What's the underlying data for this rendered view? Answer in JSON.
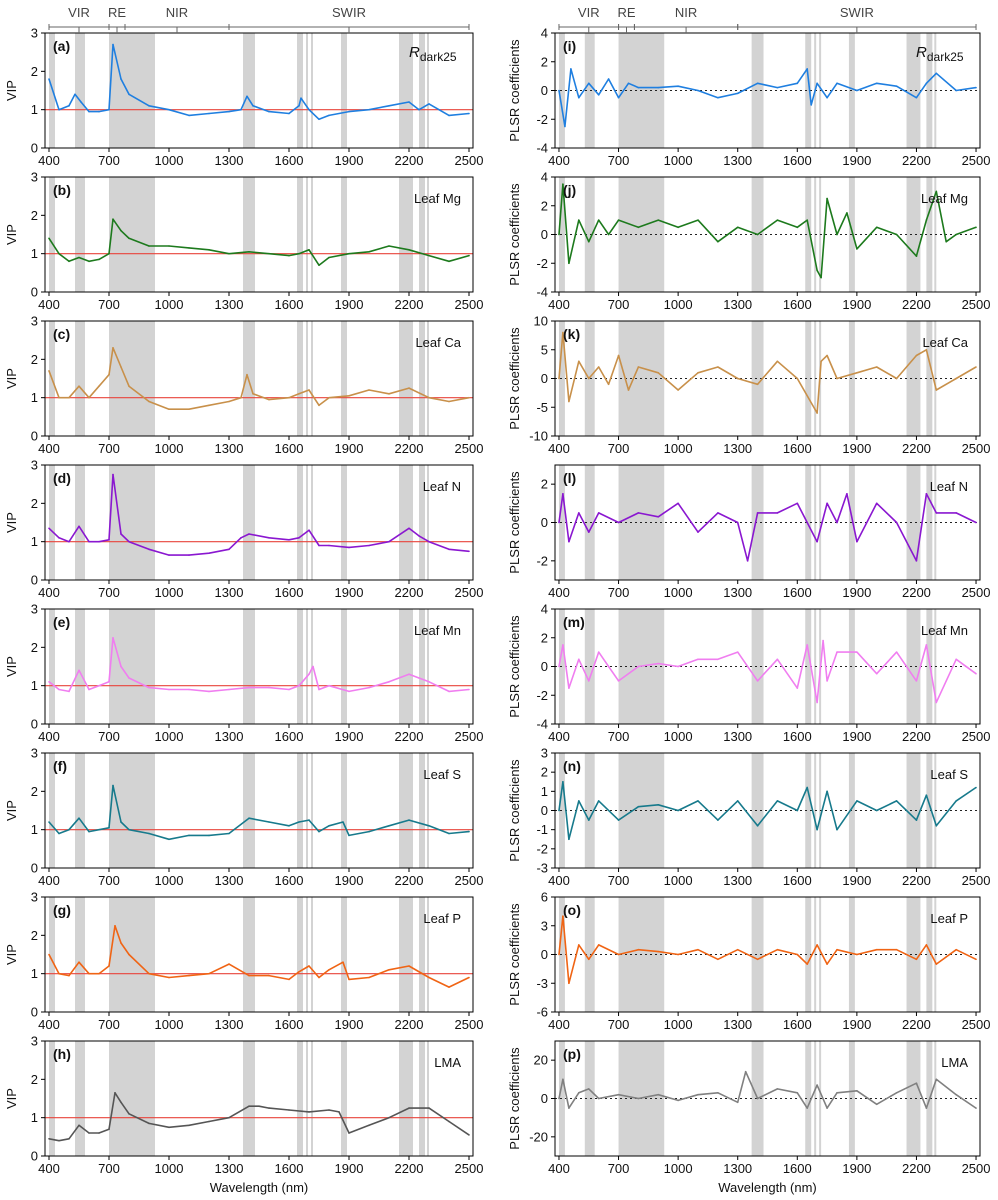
{
  "figure": {
    "x_axis_title": "Wavelength (nm)",
    "x_ticks": [
      400,
      700,
      1000,
      1300,
      1600,
      1900,
      2200,
      2500
    ],
    "x_range": [
      380,
      2520
    ],
    "regions": [
      {
        "label": "VIR",
        "start": 400,
        "end": 700
      },
      {
        "label": "RE",
        "start": 700,
        "end": 780
      },
      {
        "label": "NIR",
        "start": 780,
        "end": 1300
      },
      {
        "label": "SWIR",
        "start": 1300,
        "end": 2500
      }
    ],
    "shaded_bands": [
      [
        400,
        430
      ],
      [
        530,
        580
      ],
      [
        700,
        930
      ],
      [
        1370,
        1430
      ],
      [
        1640,
        1670
      ],
      [
        1685,
        1695
      ],
      [
        1710,
        1720
      ],
      [
        1860,
        1890
      ],
      [
        2150,
        2220
      ],
      [
        2250,
        2280
      ],
      [
        2290,
        2300
      ]
    ],
    "line_colors": {
      "reference_line": "#e8453c",
      "zero_line": "#222222",
      "shading": "#d3d3d3"
    }
  },
  "chart_data": [
    {
      "id": "a",
      "type": "line",
      "panel_label": "(a)",
      "annotation": "R",
      "annotation_sub": "dark25",
      "ylabel": "VIP",
      "ylim": [
        0,
        3
      ],
      "y_ticks": [
        0,
        1,
        2,
        3
      ],
      "reference_line": 1,
      "color": "#1f7fe0",
      "x": [
        400,
        450,
        500,
        530,
        560,
        600,
        650,
        700,
        720,
        760,
        800,
        900,
        1000,
        1100,
        1200,
        1300,
        1360,
        1390,
        1420,
        1500,
        1600,
        1650,
        1660,
        1700,
        1750,
        1800,
        1900,
        2000,
        2100,
        2200,
        2250,
        2300,
        2400,
        2500
      ],
      "y": [
        1.8,
        1.0,
        1.1,
        1.4,
        1.2,
        0.95,
        0.95,
        1.0,
        2.7,
        1.8,
        1.4,
        1.1,
        1.0,
        0.85,
        0.9,
        0.95,
        1.0,
        1.35,
        1.1,
        0.95,
        0.9,
        1.1,
        1.3,
        1.0,
        0.75,
        0.85,
        0.95,
        1.0,
        1.1,
        1.2,
        1.0,
        1.15,
        0.85,
        0.9
      ]
    },
    {
      "id": "b",
      "type": "line",
      "panel_label": "(b)",
      "annotation": "Leaf Mg",
      "ylabel": "VIP",
      "ylim": [
        0,
        3
      ],
      "y_ticks": [
        0,
        1,
        2,
        3
      ],
      "reference_line": 1,
      "color": "#1d7a1d",
      "x": [
        400,
        450,
        500,
        550,
        600,
        650,
        700,
        720,
        760,
        800,
        900,
        1000,
        1100,
        1200,
        1300,
        1400,
        1500,
        1600,
        1650,
        1700,
        1750,
        1800,
        1900,
        2000,
        2100,
        2200,
        2300,
        2400,
        2500
      ],
      "y": [
        1.4,
        1.0,
        0.8,
        0.9,
        0.8,
        0.85,
        1.0,
        1.9,
        1.6,
        1.4,
        1.2,
        1.2,
        1.15,
        1.1,
        1.0,
        1.05,
        1.0,
        0.95,
        1.0,
        1.1,
        0.7,
        0.9,
        1.0,
        1.05,
        1.2,
        1.1,
        0.95,
        0.8,
        0.95
      ]
    },
    {
      "id": "c",
      "type": "line",
      "panel_label": "(c)",
      "annotation": "Leaf Ca",
      "ylabel": "VIP",
      "ylim": [
        0,
        3
      ],
      "y_ticks": [
        0,
        1,
        2,
        3
      ],
      "reference_line": 1,
      "color": "#c8904a",
      "x": [
        400,
        450,
        500,
        550,
        600,
        650,
        700,
        720,
        760,
        800,
        900,
        1000,
        1100,
        1200,
        1300,
        1360,
        1390,
        1420,
        1500,
        1600,
        1650,
        1700,
        1750,
        1800,
        1900,
        2000,
        2100,
        2200,
        2300,
        2400,
        2500
      ],
      "y": [
        1.7,
        1.0,
        1.0,
        1.3,
        1.0,
        1.3,
        1.6,
        2.3,
        1.8,
        1.3,
        0.9,
        0.7,
        0.7,
        0.8,
        0.9,
        1.0,
        1.6,
        1.1,
        0.95,
        1.0,
        1.1,
        1.2,
        0.8,
        1.0,
        1.05,
        1.2,
        1.1,
        1.25,
        1.0,
        0.9,
        1.0
      ]
    },
    {
      "id": "d",
      "type": "line",
      "panel_label": "(d)",
      "annotation": "Leaf N",
      "ylabel": "VIP",
      "ylim": [
        0,
        3
      ],
      "y_ticks": [
        0,
        1,
        2,
        3
      ],
      "reference_line": 1,
      "color": "#8a17d0",
      "x": [
        400,
        450,
        500,
        550,
        600,
        650,
        700,
        720,
        760,
        800,
        900,
        1000,
        1100,
        1200,
        1300,
        1360,
        1400,
        1500,
        1600,
        1650,
        1700,
        1750,
        1800,
        1900,
        2000,
        2100,
        2200,
        2250,
        2300,
        2400,
        2500
      ],
      "y": [
        1.35,
        1.1,
        1.0,
        1.4,
        1.0,
        1.0,
        1.05,
        2.75,
        1.2,
        1.0,
        0.8,
        0.65,
        0.65,
        0.7,
        0.8,
        1.1,
        1.2,
        1.1,
        1.05,
        1.1,
        1.3,
        0.9,
        0.9,
        0.85,
        0.9,
        1.0,
        1.35,
        1.15,
        1.0,
        0.8,
        0.75
      ]
    },
    {
      "id": "e",
      "type": "line",
      "panel_label": "(e)",
      "annotation": "Leaf Mn",
      "ylabel": "VIP",
      "ylim": [
        0,
        3
      ],
      "y_ticks": [
        0,
        1,
        2,
        3
      ],
      "reference_line": 1,
      "color": "#f07ef0",
      "x": [
        400,
        450,
        500,
        550,
        600,
        650,
        700,
        720,
        760,
        800,
        900,
        1000,
        1100,
        1200,
        1300,
        1400,
        1500,
        1600,
        1650,
        1700,
        1720,
        1750,
        1800,
        1900,
        2000,
        2100,
        2200,
        2250,
        2300,
        2400,
        2500
      ],
      "y": [
        1.1,
        0.9,
        0.85,
        1.4,
        0.9,
        1.0,
        1.1,
        2.25,
        1.5,
        1.2,
        0.95,
        0.9,
        0.9,
        0.85,
        0.9,
        0.95,
        0.95,
        0.9,
        1.0,
        1.3,
        1.5,
        0.9,
        1.0,
        0.85,
        0.95,
        1.1,
        1.3,
        1.2,
        1.1,
        0.85,
        0.9
      ]
    },
    {
      "id": "f",
      "type": "line",
      "panel_label": "(f)",
      "annotation": "Leaf S",
      "ylabel": "VIP",
      "ylim": [
        0,
        3
      ],
      "y_ticks": [
        0,
        1,
        2,
        3
      ],
      "reference_line": 1,
      "color": "#177a8c",
      "x": [
        400,
        450,
        500,
        550,
        600,
        650,
        700,
        720,
        760,
        800,
        900,
        1000,
        1100,
        1200,
        1300,
        1400,
        1500,
        1600,
        1650,
        1700,
        1750,
        1800,
        1870,
        1900,
        2000,
        2100,
        2200,
        2300,
        2400,
        2500
      ],
      "y": [
        1.2,
        0.9,
        1.0,
        1.3,
        0.95,
        1.0,
        1.05,
        2.15,
        1.2,
        1.0,
        0.9,
        0.75,
        0.85,
        0.85,
        0.9,
        1.3,
        1.2,
        1.1,
        1.2,
        1.25,
        0.95,
        1.1,
        1.2,
        0.85,
        0.95,
        1.1,
        1.25,
        1.1,
        0.9,
        0.95
      ]
    },
    {
      "id": "g",
      "type": "line",
      "panel_label": "(g)",
      "annotation": "Leaf P",
      "ylabel": "VIP",
      "ylim": [
        0,
        3
      ],
      "y_ticks": [
        0,
        1,
        2,
        3
      ],
      "reference_line": 1,
      "color": "#f06414",
      "x": [
        400,
        450,
        500,
        550,
        600,
        650,
        700,
        730,
        760,
        800,
        900,
        1000,
        1100,
        1200,
        1300,
        1400,
        1500,
        1600,
        1650,
        1700,
        1750,
        1800,
        1870,
        1900,
        2000,
        2100,
        2200,
        2300,
        2400,
        2500
      ],
      "y": [
        1.5,
        1.0,
        0.95,
        1.3,
        1.0,
        1.0,
        1.2,
        2.25,
        1.8,
        1.5,
        1.0,
        0.9,
        0.95,
        1.0,
        1.25,
        0.95,
        0.95,
        0.85,
        1.05,
        1.2,
        0.9,
        1.1,
        1.3,
        0.85,
        0.9,
        1.1,
        1.2,
        0.9,
        0.65,
        0.9
      ]
    },
    {
      "id": "h",
      "type": "line",
      "panel_label": "(h)",
      "annotation": "LMA",
      "ylabel": "VIP",
      "ylim": [
        0,
        3
      ],
      "y_ticks": [
        0,
        1,
        2,
        3
      ],
      "reference_line": 1,
      "color": "#555555",
      "x": [
        400,
        450,
        500,
        550,
        600,
        650,
        700,
        730,
        760,
        800,
        900,
        1000,
        1100,
        1200,
        1300,
        1400,
        1450,
        1500,
        1600,
        1700,
        1800,
        1850,
        1900,
        2000,
        2100,
        2200,
        2300,
        2400,
        2500
      ],
      "y": [
        0.45,
        0.4,
        0.45,
        0.8,
        0.6,
        0.6,
        0.7,
        1.65,
        1.4,
        1.1,
        0.85,
        0.75,
        0.8,
        0.9,
        1.0,
        1.3,
        1.3,
        1.25,
        1.2,
        1.15,
        1.2,
        1.15,
        0.6,
        0.8,
        1.0,
        1.25,
        1.25,
        0.9,
        0.55
      ]
    },
    {
      "id": "i",
      "type": "line",
      "panel_label": "(i)",
      "annotation": "R",
      "annotation_sub": "dark25",
      "ylabel": "PLSR coefficients",
      "ylim": [
        -4,
        4
      ],
      "y_ticks": [
        -4,
        -2,
        0,
        2,
        4
      ],
      "zero_line": 0,
      "color": "#1f7fe0",
      "x": [
        400,
        430,
        460,
        500,
        550,
        600,
        650,
        700,
        750,
        800,
        900,
        1000,
        1100,
        1200,
        1300,
        1400,
        1500,
        1600,
        1650,
        1670,
        1700,
        1750,
        1800,
        1900,
        2000,
        2100,
        2200,
        2250,
        2300,
        2400,
        2500
      ],
      "y": [
        0,
        -2.5,
        1.5,
        -0.5,
        0.5,
        -0.3,
        0.8,
        -0.5,
        0.5,
        0.2,
        0.2,
        0.3,
        0.0,
        -0.5,
        -0.2,
        0.5,
        0.2,
        0.5,
        1.5,
        -1.0,
        0.5,
        -0.5,
        0.5,
        0.0,
        0.5,
        0.3,
        -0.5,
        0.5,
        1.2,
        0.0,
        0.2
      ]
    },
    {
      "id": "j",
      "type": "line",
      "panel_label": "(j)",
      "annotation": "Leaf Mg",
      "ylabel": "PLSR coefficients",
      "ylim": [
        -4,
        4
      ],
      "y_ticks": [
        -4,
        -2,
        0,
        2,
        4
      ],
      "zero_line": 0,
      "color": "#1d7a1d",
      "x": [
        400,
        420,
        450,
        500,
        550,
        600,
        650,
        700,
        800,
        900,
        1000,
        1100,
        1200,
        1300,
        1400,
        1500,
        1600,
        1650,
        1700,
        1720,
        1750,
        1800,
        1850,
        1900,
        2000,
        2100,
        2200,
        2250,
        2300,
        2350,
        2400,
        2500
      ],
      "y": [
        0,
        3.5,
        -2.0,
        1.0,
        -0.5,
        1.0,
        0.0,
        1.0,
        0.5,
        1.0,
        0.5,
        1.0,
        -0.5,
        0.5,
        0.0,
        1.0,
        0.5,
        1.0,
        -2.5,
        -3.0,
        2.5,
        0.0,
        1.5,
        -1.0,
        0.5,
        0.0,
        -1.5,
        1.0,
        3.0,
        -0.5,
        0.0,
        0.5
      ]
    },
    {
      "id": "k",
      "type": "line",
      "panel_label": "(k)",
      "annotation": "Leaf Ca",
      "ylabel": "PLSR coefficients",
      "ylim": [
        -10,
        10
      ],
      "y_ticks": [
        -10,
        -5,
        0,
        5,
        10
      ],
      "zero_line": 0,
      "color": "#c8904a",
      "x": [
        400,
        420,
        450,
        500,
        550,
        600,
        650,
        700,
        750,
        800,
        900,
        1000,
        1100,
        1200,
        1300,
        1400,
        1500,
        1600,
        1700,
        1720,
        1750,
        1800,
        1900,
        2000,
        2100,
        2200,
        2250,
        2300,
        2400,
        2500
      ],
      "y": [
        0,
        8.0,
        -4.0,
        3.0,
        0.0,
        2.0,
        -1.0,
        4.0,
        -2.0,
        2.0,
        1.0,
        -2.0,
        1.0,
        2.0,
        0.0,
        -1.0,
        3.0,
        0.0,
        -6.0,
        3.0,
        4.0,
        0.0,
        1.0,
        2.0,
        0.0,
        4.0,
        5.0,
        -2.0,
        0.0,
        2.0
      ]
    },
    {
      "id": "l",
      "type": "line",
      "panel_label": "(l)",
      "annotation": "Leaf N",
      "ylabel": "PLSR coefficients",
      "ylim": [
        -3,
        3
      ],
      "y_ticks": [
        -2,
        0,
        2
      ],
      "zero_line": 0,
      "color": "#8a17d0",
      "x": [
        400,
        420,
        450,
        500,
        550,
        600,
        700,
        800,
        900,
        1000,
        1100,
        1200,
        1300,
        1350,
        1400,
        1500,
        1600,
        1700,
        1750,
        1800,
        1850,
        1900,
        2000,
        2100,
        2200,
        2250,
        2300,
        2400,
        2500
      ],
      "y": [
        0,
        1.5,
        -1.0,
        0.5,
        -0.5,
        0.5,
        0.0,
        0.5,
        0.3,
        1.0,
        -0.5,
        0.5,
        0.0,
        -2.0,
        0.5,
        0.5,
        1.0,
        -1.0,
        1.0,
        0.0,
        1.5,
        -1.0,
        1.0,
        0.0,
        -2.0,
        1.5,
        0.5,
        0.5,
        0.0
      ]
    },
    {
      "id": "m",
      "type": "line",
      "panel_label": "(m)",
      "annotation": "Leaf Mn",
      "ylabel": "PLSR coefficients",
      "ylim": [
        -4,
        4
      ],
      "y_ticks": [
        -4,
        -2,
        0,
        2,
        4
      ],
      "zero_line": 0,
      "color": "#f07ef0",
      "x": [
        400,
        420,
        450,
        500,
        550,
        600,
        650,
        700,
        800,
        900,
        1000,
        1100,
        1200,
        1300,
        1400,
        1500,
        1600,
        1650,
        1700,
        1730,
        1750,
        1800,
        1900,
        2000,
        2100,
        2200,
        2250,
        2300,
        2400,
        2500
      ],
      "y": [
        0,
        1.5,
        -1.5,
        0.5,
        -1.0,
        1.0,
        0.0,
        -1.0,
        0.0,
        0.2,
        0.0,
        0.5,
        0.5,
        1.0,
        -1.0,
        0.5,
        -1.5,
        1.5,
        -2.5,
        1.8,
        -1.0,
        1.0,
        1.0,
        -0.5,
        1.0,
        -1.0,
        1.5,
        -2.5,
        0.5,
        -0.5
      ]
    },
    {
      "id": "n",
      "type": "line",
      "panel_label": "(n)",
      "annotation": "Leaf S",
      "ylabel": "PLSR coefficients",
      "ylim": [
        -3,
        3
      ],
      "y_ticks": [
        -3,
        -2,
        -1,
        0,
        1,
        2,
        3
      ],
      "zero_line": 0,
      "color": "#177a8c",
      "x": [
        400,
        420,
        450,
        500,
        550,
        600,
        700,
        800,
        900,
        1000,
        1100,
        1200,
        1300,
        1400,
        1500,
        1600,
        1650,
        1700,
        1750,
        1800,
        1900,
        2000,
        2100,
        2200,
        2250,
        2300,
        2400,
        2500
      ],
      "y": [
        0,
        1.5,
        -1.5,
        0.5,
        -0.5,
        0.5,
        -0.5,
        0.2,
        0.3,
        0.0,
        0.5,
        -0.5,
        0.5,
        -0.8,
        0.5,
        0.0,
        1.2,
        -1.0,
        1.0,
        -1.0,
        0.5,
        0.0,
        0.5,
        -0.5,
        0.8,
        -0.8,
        0.5,
        1.2
      ]
    },
    {
      "id": "o",
      "type": "line",
      "panel_label": "(o)",
      "annotation": "Leaf P",
      "ylabel": "PLSR coefficients",
      "ylim": [
        -6,
        6
      ],
      "y_ticks": [
        -6,
        -3,
        0,
        3,
        6
      ],
      "zero_line": 0,
      "color": "#f06414",
      "x": [
        400,
        420,
        450,
        500,
        550,
        600,
        700,
        800,
        900,
        1000,
        1100,
        1200,
        1300,
        1400,
        1500,
        1600,
        1650,
        1700,
        1750,
        1800,
        1900,
        2000,
        2100,
        2200,
        2250,
        2300,
        2400,
        2500
      ],
      "y": [
        0,
        4.0,
        -3.0,
        1.0,
        -0.5,
        1.0,
        0.0,
        0.5,
        0.3,
        0.0,
        0.5,
        -0.5,
        0.5,
        -0.5,
        0.5,
        0.0,
        -1.0,
        1.0,
        -1.0,
        0.5,
        0.0,
        0.5,
        0.5,
        -0.5,
        1.0,
        -1.0,
        0.5,
        -0.5
      ]
    },
    {
      "id": "p",
      "type": "line",
      "panel_label": "(p)",
      "annotation": "LMA",
      "ylabel": "PLSR coefficients",
      "ylim": [
        -30,
        30
      ],
      "y_ticks": [
        -20,
        0,
        20
      ],
      "zero_line": 0,
      "color": "#808080",
      "x": [
        400,
        420,
        450,
        500,
        550,
        600,
        700,
        800,
        900,
        1000,
        1100,
        1200,
        1300,
        1340,
        1400,
        1500,
        1600,
        1650,
        1700,
        1750,
        1800,
        1900,
        2000,
        2100,
        2200,
        2250,
        2300,
        2400,
        2500
      ],
      "y": [
        0,
        10.0,
        -5.0,
        3.0,
        5.0,
        0.0,
        2.0,
        0.0,
        2.0,
        -1.0,
        2.0,
        3.0,
        -2.0,
        14.0,
        0.0,
        5.0,
        3.0,
        -5.0,
        7.0,
        -5.0,
        3.0,
        4.0,
        -3.0,
        3.0,
        8.0,
        -5.0,
        10.0,
        2.0,
        -5.0
      ]
    }
  ]
}
